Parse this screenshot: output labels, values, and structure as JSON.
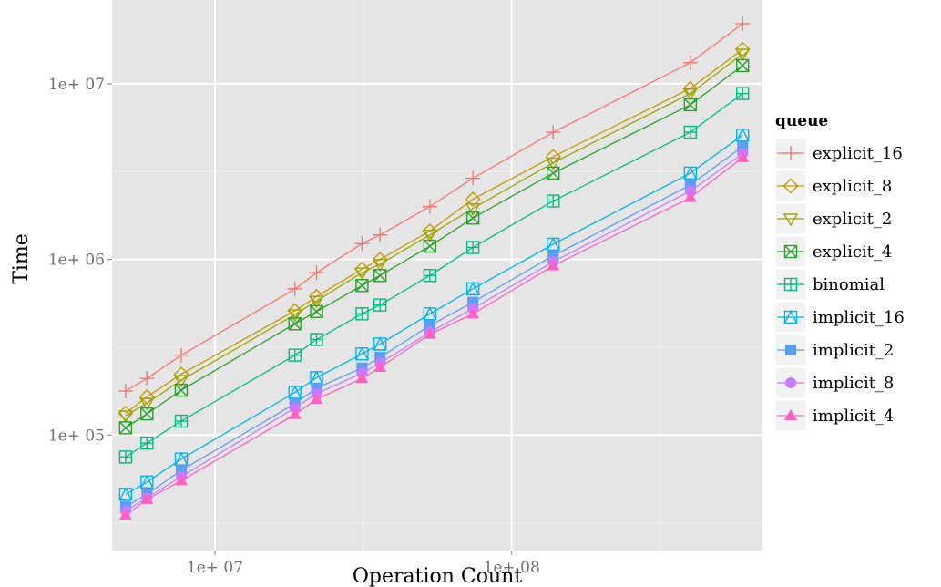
{
  "chart_data": {
    "type": "line",
    "xlabel": "Operation Count",
    "ylabel": "Time",
    "xscale": "log10",
    "yscale": "log10",
    "xlim": [
      4500000,
      700000000
    ],
    "ylim": [
      22000,
      30000000
    ],
    "grid": true,
    "legend_position": "right",
    "x_ticks": [
      {
        "value": 10000000,
        "label": "1e+ 07"
      },
      {
        "value": 100000000,
        "label": "1e+ 08"
      }
    ],
    "y_ticks": [
      {
        "value": 100000,
        "label": "1e+ 05"
      },
      {
        "value": 1000000,
        "label": "1e+ 06"
      },
      {
        "value": 10000000,
        "label": "1e+ 07"
      }
    ],
    "legend_title": "queue",
    "x": [
      5000000,
      5900000,
      7700000,
      18600000,
      22000000,
      31300000,
      36000000,
      53000000,
      74000000,
      138000000,
      400000000,
      600000000
    ],
    "series": [
      {
        "name": "explicit_16",
        "color": "#F8766D",
        "shape": "plus",
        "values": [
          178000,
          210000,
          285000,
          680000,
          840000,
          1230000,
          1380000,
          2000000,
          2900000,
          5300000,
          13200000,
          22000000
        ]
      },
      {
        "name": "explicit_8",
        "color": "#C49A00",
        "shape": "diamond",
        "values": [
          133000,
          165000,
          222000,
          510000,
          615000,
          880000,
          1000000,
          1450000,
          2200000,
          3850000,
          9400000,
          15700000
        ]
      },
      {
        "name": "explicit_2",
        "color": "#99A800",
        "shape": "triangle-down",
        "values": [
          129000,
          152000,
          205000,
          485000,
          580000,
          840000,
          940000,
          1380000,
          1950000,
          3550000,
          8800000,
          14800000
        ]
      },
      {
        "name": "explicit_4",
        "color": "#2CA02C",
        "shape": "square-cross",
        "values": [
          110000,
          132000,
          180000,
          430000,
          505000,
          710000,
          810000,
          1190000,
          1720000,
          3100000,
          7600000,
          12700000
        ]
      },
      {
        "name": "binomial",
        "color": "#00BC85",
        "shape": "square-plus",
        "values": [
          75000,
          90000,
          120000,
          285000,
          350000,
          490000,
          550000,
          810000,
          1170000,
          2150000,
          5300000,
          8800000
        ]
      },
      {
        "name": "implicit_16",
        "color": "#00B4EF",
        "shape": "square-triangle",
        "values": [
          46000,
          54000,
          73000,
          175000,
          212000,
          290000,
          330000,
          490000,
          680000,
          1220000,
          3100000,
          5100000
        ]
      },
      {
        "name": "implicit_2",
        "color": "#5E9EF2",
        "shape": "square-filled",
        "values": [
          39000,
          46000,
          63000,
          151000,
          185000,
          241000,
          277000,
          420000,
          570000,
          1050000,
          2650000,
          4400000
        ]
      },
      {
        "name": "implicit_8",
        "color": "#C77CFF",
        "shape": "circle-filled",
        "values": [
          37000,
          44000,
          58000,
          143000,
          172000,
          225000,
          257000,
          385000,
          525000,
          970000,
          2450000,
          4000000
        ]
      },
      {
        "name": "implicit_4",
        "color": "#FF61C3",
        "shape": "triangle-filled",
        "values": [
          35000,
          43000,
          55000,
          131000,
          160000,
          210000,
          243000,
          375000,
          490000,
          920000,
          2250000,
          3800000
        ]
      }
    ]
  }
}
